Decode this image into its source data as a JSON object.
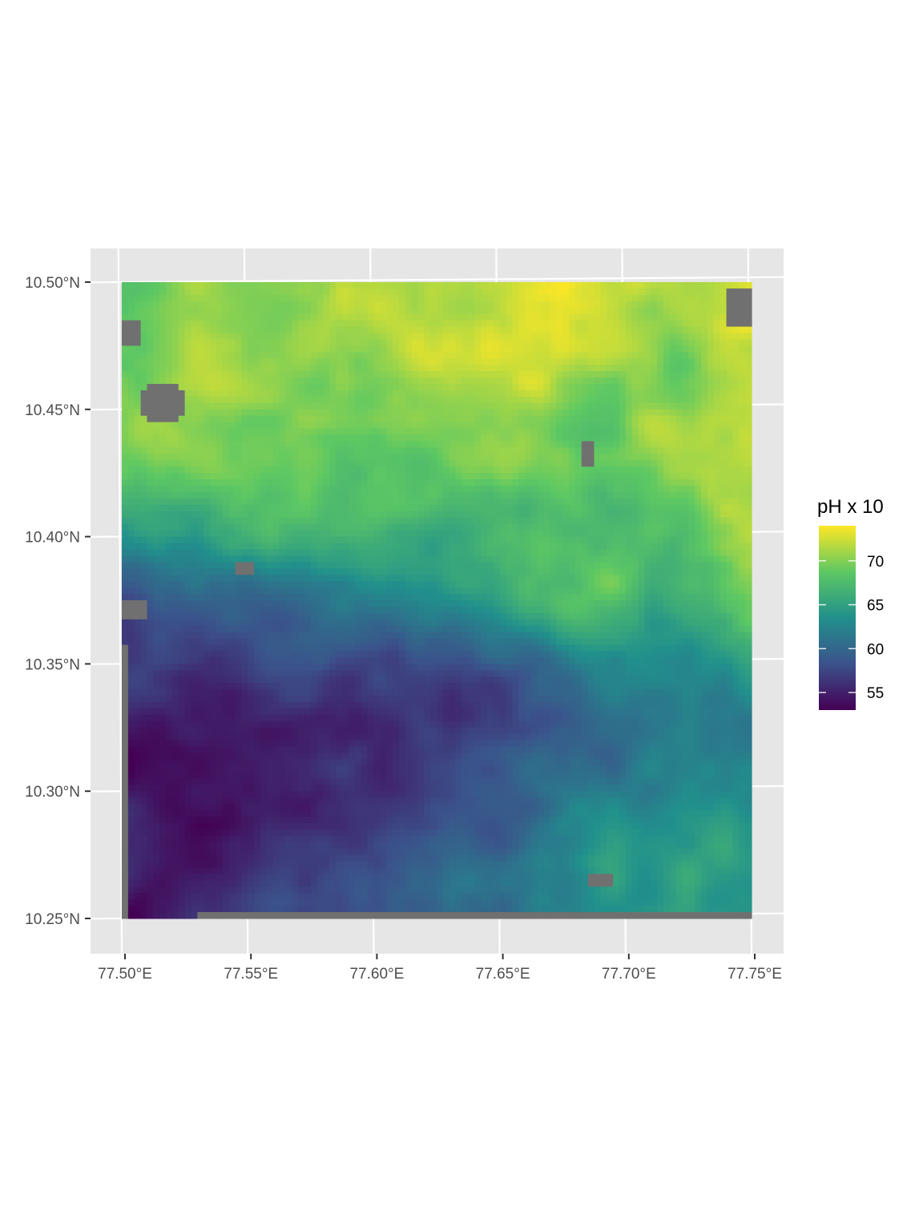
{
  "map": {
    "x_axis": {
      "ticks": [
        "77.50°E",
        "77.55°E",
        "77.60°E",
        "77.65°E",
        "77.70°E",
        "77.75°E"
      ],
      "values": [
        77.5,
        77.55,
        77.6,
        77.65,
        77.7,
        77.75
      ]
    },
    "y_axis": {
      "ticks": [
        "10.25°N",
        "10.30°N",
        "10.35°N",
        "10.40°N",
        "10.45°N",
        "10.50°N"
      ],
      "values": [
        10.25,
        10.3,
        10.35,
        10.4,
        10.45,
        10.5
      ]
    },
    "extent": {
      "lon": [
        77.5,
        77.75
      ],
      "lat": [
        10.25,
        10.5
      ]
    },
    "na_color": "#707070",
    "panel_background": "#e6e6e6",
    "legend": {
      "title": "pH x 10",
      "labels": [
        "70",
        "65",
        "60",
        "55"
      ],
      "values": [
        70,
        65,
        60,
        55
      ],
      "range": [
        53,
        74
      ],
      "palette": "viridis",
      "palette_stops": [
        "#440154",
        "#3b528b",
        "#21908c",
        "#5dc863",
        "#fde725"
      ],
      "placement": "right"
    }
  }
}
